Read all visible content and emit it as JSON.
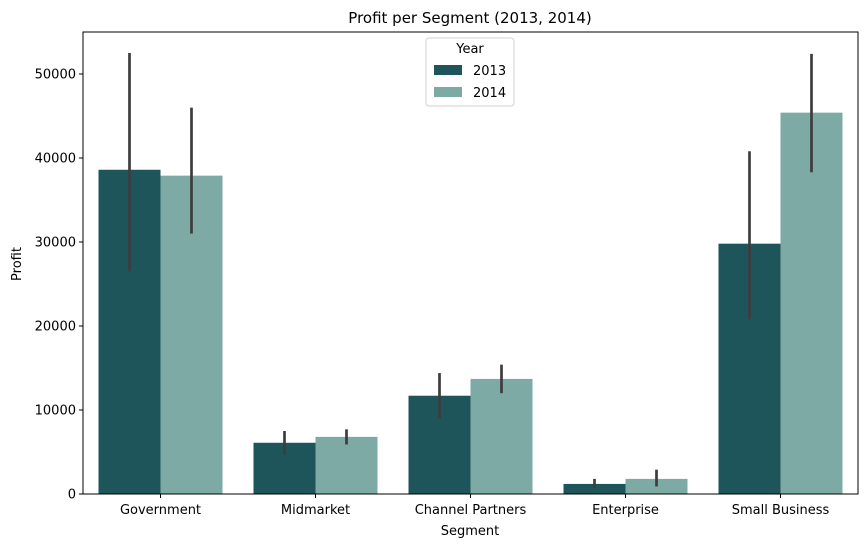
{
  "chart_data": {
    "type": "bar",
    "title": "Profit per Segment (2013, 2014)",
    "xlabel": "Segment",
    "ylabel": "Profit",
    "categories": [
      "Government",
      "Midmarket",
      "Channel Partners",
      "Enterprise",
      "Small Business"
    ],
    "ylim": [
      0,
      55000
    ],
    "yticks": [
      0,
      10000,
      20000,
      30000,
      40000,
      50000
    ],
    "grid": false,
    "legend": {
      "title": "Year",
      "placement": "top-center"
    },
    "series": [
      {
        "name": "2013",
        "color": "#1d555b",
        "values": [
          38600,
          6100,
          11700,
          1200,
          29800
        ],
        "ci": [
          [
            26500,
            52500
          ],
          [
            4700,
            7500
          ],
          [
            9000,
            14400
          ],
          [
            700,
            1800
          ],
          [
            20800,
            40800
          ]
        ]
      },
      {
        "name": "2014",
        "color": "#7eaaa5",
        "values": [
          37900,
          6800,
          13700,
          1800,
          45400
        ],
        "ci": [
          [
            31000,
            46000
          ],
          [
            5900,
            7700
          ],
          [
            12000,
            15400
          ],
          [
            900,
            2900
          ],
          [
            38300,
            52400
          ]
        ]
      }
    ],
    "errorbar_color": "#3d3d3d"
  }
}
